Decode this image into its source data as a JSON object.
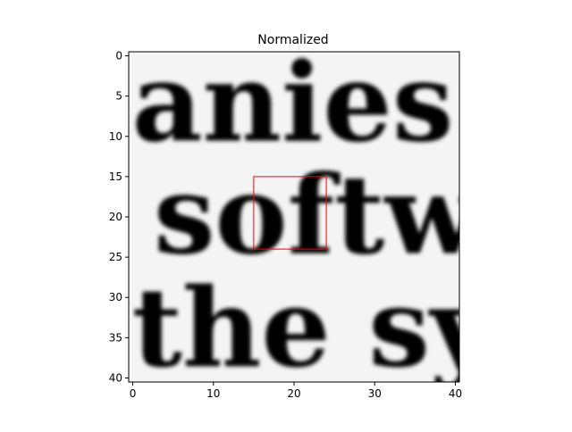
{
  "chart_data": {
    "type": "heatmap",
    "title": "Normalized",
    "xlabel": "",
    "ylabel": "",
    "xlim": [
      -0.5,
      40.5
    ],
    "ylim": [
      40.5,
      -0.5
    ],
    "xticks": [
      0,
      10,
      20,
      30,
      40
    ],
    "yticks": [
      0,
      5,
      10,
      15,
      20,
      25,
      30,
      35,
      40
    ],
    "colormap": "gray",
    "grid": false,
    "image_text_rows": [
      {
        "text": "anies  a",
        "baseline_y": 10.5
      },
      {
        "text": "softwa",
        "baseline_y": 24.5
      },
      {
        "text": "the  sys",
        "baseline_y": 38.5
      }
    ],
    "highlight_box": {
      "x0": 15,
      "y0": 15,
      "x1": 24,
      "y1": 24,
      "color": "#ff0000"
    }
  }
}
